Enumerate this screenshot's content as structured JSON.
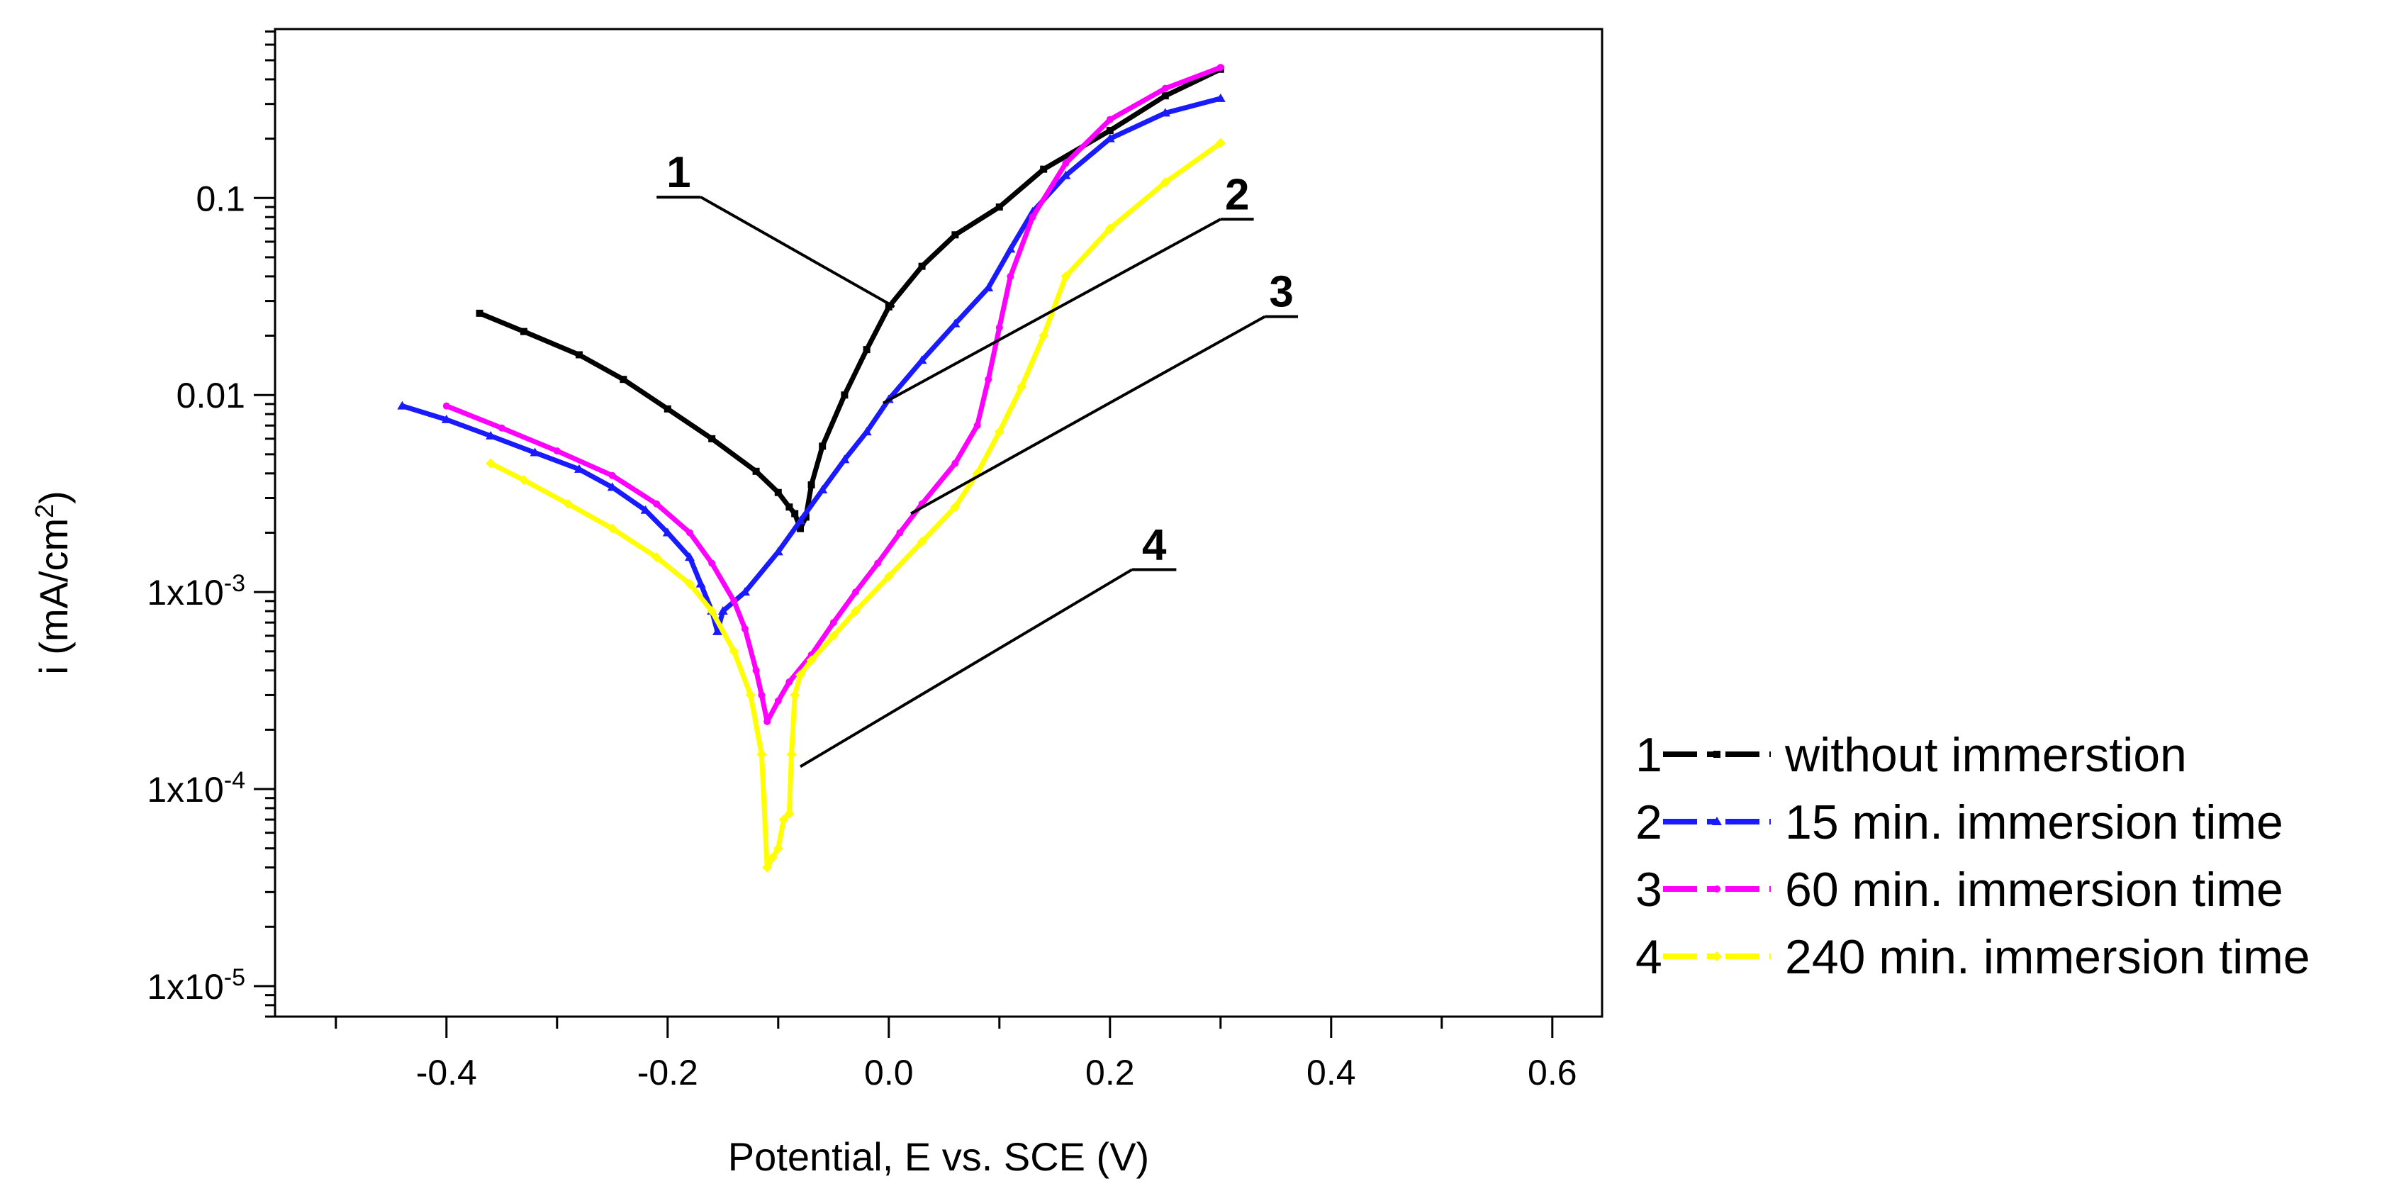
{
  "chart_data": {
    "type": "line",
    "title": "",
    "xlabel": "Potential, E vs. SCE (V)",
    "ylabel": "i (mA/cm2)",
    "y_scale": "log",
    "xlim": [
      -0.555,
      0.645
    ],
    "ylim": [
      7e-06,
      0.72
    ],
    "x_ticks": [
      -0.4,
      -0.2,
      0.0,
      0.2,
      0.4,
      0.6
    ],
    "x_tick_labels": [
      "-0.4",
      "-0.2",
      "0.0",
      "0.2",
      "0.4",
      "0.6"
    ],
    "y_ticks": [
      0.1,
      0.01,
      0.001,
      0.0001,
      1e-05
    ],
    "y_tick_labels": [
      {
        "text": "0.1"
      },
      {
        "text": "0.01"
      },
      {
        "text": "1x10",
        "sup": "-3"
      },
      {
        "text": "1x10",
        "sup": "-4"
      },
      {
        "text": "1x10",
        "sup": "-5"
      }
    ],
    "grid": false,
    "legend_position": "right",
    "series": [
      {
        "id": "1",
        "name": "without immerstion",
        "color": "#000000",
        "marker": "square",
        "x": [
          -0.37,
          -0.33,
          -0.28,
          -0.24,
          -0.2,
          -0.16,
          -0.12,
          -0.1,
          -0.09,
          -0.085,
          -0.08,
          -0.075,
          -0.07,
          -0.06,
          -0.04,
          -0.02,
          0.0,
          0.03,
          0.06,
          0.1,
          0.14,
          0.2,
          0.25,
          0.3
        ],
        "y": [
          0.026,
          0.021,
          0.016,
          0.012,
          0.0085,
          0.006,
          0.0041,
          0.0032,
          0.0027,
          0.0025,
          0.0021,
          0.0024,
          0.0035,
          0.0055,
          0.01,
          0.017,
          0.028,
          0.045,
          0.065,
          0.09,
          0.14,
          0.22,
          0.33,
          0.45
        ]
      },
      {
        "id": "2",
        "name": "15 min. immersion time",
        "color": "#1a1aff",
        "marker": "triangle",
        "x": [
          -0.44,
          -0.4,
          -0.36,
          -0.32,
          -0.28,
          -0.25,
          -0.22,
          -0.2,
          -0.18,
          -0.17,
          -0.16,
          -0.155,
          -0.15,
          -0.13,
          -0.1,
          -0.08,
          -0.06,
          -0.04,
          -0.02,
          0.0,
          0.03,
          0.06,
          0.09,
          0.11,
          0.13,
          0.16,
          0.2,
          0.25,
          0.3
        ],
        "y": [
          0.0088,
          0.0075,
          0.0062,
          0.0051,
          0.0042,
          0.0034,
          0.0026,
          0.002,
          0.0015,
          0.0011,
          0.0008,
          0.00063,
          0.0008,
          0.001,
          0.0016,
          0.0023,
          0.0033,
          0.0047,
          0.0065,
          0.0095,
          0.015,
          0.023,
          0.035,
          0.055,
          0.085,
          0.13,
          0.2,
          0.27,
          0.32
        ]
      },
      {
        "id": "3",
        "name": "60 min. immersion time",
        "color": "#ff00ff",
        "marker": "circle",
        "x": [
          -0.4,
          -0.35,
          -0.3,
          -0.25,
          -0.21,
          -0.18,
          -0.16,
          -0.14,
          -0.13,
          -0.12,
          -0.115,
          -0.11,
          -0.1,
          -0.09,
          -0.07,
          -0.05,
          -0.03,
          -0.01,
          0.01,
          0.03,
          0.06,
          0.08,
          0.09,
          0.1,
          0.11,
          0.13,
          0.16,
          0.2,
          0.25,
          0.3
        ],
        "y": [
          0.0088,
          0.0068,
          0.0052,
          0.0039,
          0.0028,
          0.002,
          0.0014,
          0.0009,
          0.00065,
          0.0004,
          0.0003,
          0.00022,
          0.00028,
          0.00035,
          0.00048,
          0.0007,
          0.001,
          0.0014,
          0.002,
          0.0028,
          0.0045,
          0.007,
          0.012,
          0.022,
          0.04,
          0.08,
          0.15,
          0.25,
          0.36,
          0.46
        ]
      },
      {
        "id": "4",
        "name": "240 min. immersion time",
        "color": "#ffff00",
        "marker": "diamond",
        "x": [
          -0.36,
          -0.33,
          -0.29,
          -0.25,
          -0.21,
          -0.18,
          -0.16,
          -0.14,
          -0.125,
          -0.115,
          -0.11,
          -0.105,
          -0.1,
          -0.095,
          -0.09,
          -0.088,
          -0.085,
          -0.08,
          -0.07,
          -0.05,
          -0.03,
          0.0,
          0.03,
          0.06,
          0.08,
          0.1,
          0.12,
          0.14,
          0.16,
          0.2,
          0.25,
          0.3
        ],
        "y": [
          0.0045,
          0.0037,
          0.0028,
          0.0021,
          0.0015,
          0.0011,
          0.0008,
          0.0005,
          0.0003,
          0.00015,
          4e-05,
          4.5e-05,
          5e-05,
          7e-05,
          7.5e-05,
          0.00015,
          0.0003,
          0.00038,
          0.00045,
          0.0006,
          0.0008,
          0.0012,
          0.0018,
          0.0027,
          0.004,
          0.0065,
          0.011,
          0.02,
          0.04,
          0.07,
          0.12,
          0.19
        ]
      }
    ],
    "annotations": [
      {
        "label": "1",
        "series": "1",
        "shelf_x": [
          -0.21,
          -0.17
        ],
        "shelf_y": 0.101,
        "target": [
          0.005,
          0.028
        ]
      },
      {
        "label": "2",
        "series": "2",
        "shelf_x": [
          0.3,
          0.33
        ],
        "shelf_y": 0.078,
        "target": [
          -0.005,
          0.0091
        ]
      },
      {
        "label": "3",
        "series": "3",
        "shelf_x": [
          0.34,
          0.37
        ],
        "shelf_y": 0.025,
        "target": [
          0.02,
          0.0025
        ]
      },
      {
        "label": "4",
        "series": "4",
        "shelf_x": [
          0.22,
          0.26
        ],
        "shelf_y": 0.0013,
        "target": [
          -0.08,
          0.00013
        ]
      }
    ]
  }
}
